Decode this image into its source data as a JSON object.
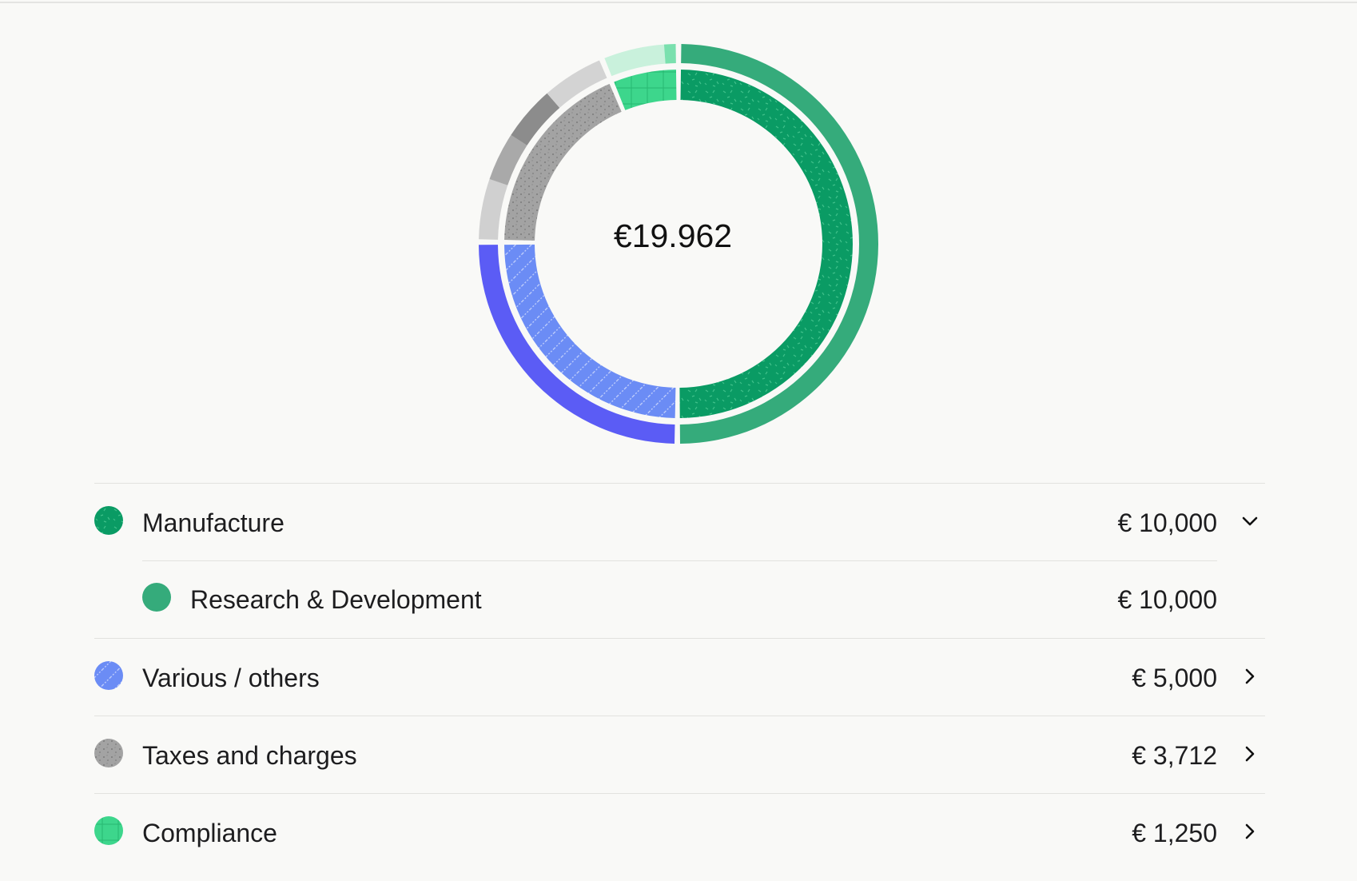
{
  "chart_data": {
    "type": "pie",
    "center_label": "€19.962",
    "categories": [
      "Manufacture",
      "Research & Development",
      "Various / others",
      "Taxes and charges",
      "Compliance"
    ],
    "inner_ring": [
      {
        "name": "Manufacture",
        "value": 10000,
        "color": "#0a9b64",
        "pattern": "dashes"
      },
      {
        "name": "Various / others",
        "value": 5000,
        "color": "#6b8cf5",
        "pattern": "stripes"
      },
      {
        "name": "Taxes and charges",
        "value": 3712,
        "color": "#a3a3a3",
        "pattern": "dots"
      },
      {
        "name": "Compliance",
        "value": 1250,
        "color": "#3dd68c",
        "pattern": "grid"
      }
    ],
    "outer_ring": [
      {
        "name": "Research & Development",
        "value": 10000,
        "color": "#35ab7b"
      },
      {
        "name": "Various / others",
        "value": 5000,
        "color": "#5b5cf5"
      },
      {
        "name": "Taxes and charges",
        "value": 3712,
        "color": "#c8c8c8",
        "subsegments": [
          {
            "value": 1000,
            "color": "#d0d0d0"
          },
          {
            "value": 800,
            "color": "#a9a9a9"
          },
          {
            "value": 900,
            "color": "#8c8c8c"
          },
          {
            "value": 1012,
            "color": "#d3d3d3"
          }
        ]
      },
      {
        "name": "Compliance",
        "value": 1250,
        "color": "#c9f1dc",
        "subsegments": [
          {
            "value": 1050,
            "color": "#c9f1dc"
          },
          {
            "value": 200,
            "color": "#7ae0ae"
          }
        ]
      }
    ]
  },
  "legend": [
    {
      "label": "Manufacture",
      "amount": "€ 10,000",
      "chevron": "chevron-down-icon",
      "color": "#0a9b64",
      "pattern": "dashes",
      "sub": false
    },
    {
      "label": "Research & Development",
      "amount": "€ 10,000",
      "chevron": "",
      "color": "#35ab7b",
      "pattern": "solid",
      "sub": true
    },
    {
      "label": "Various / others",
      "amount": "€ 5,000",
      "chevron": "chevron-right-icon",
      "color": "#6b8cf5",
      "pattern": "stripes",
      "sub": false
    },
    {
      "label": "Taxes and charges",
      "amount": "€ 3,712",
      "chevron": "chevron-right-icon",
      "color": "#a3a3a3",
      "pattern": "dots",
      "sub": false
    },
    {
      "label": "Compliance",
      "amount": "€ 1,250",
      "chevron": "chevron-right-icon",
      "color": "#3dd68c",
      "pattern": "grid",
      "sub": false
    }
  ]
}
